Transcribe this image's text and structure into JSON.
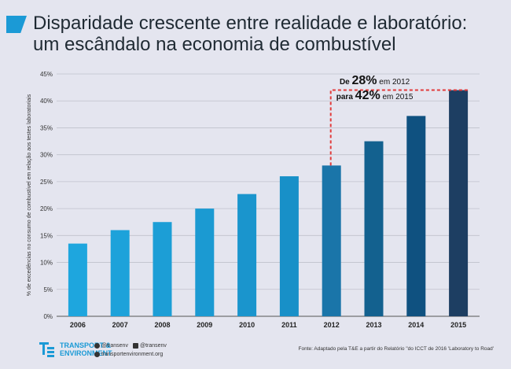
{
  "title_line1": "Disparidade crescente entre realidade e laboratório:",
  "title_line2": "um escândalo na economia de combustível",
  "annotation": {
    "prefix1": "De ",
    "value1": "28%",
    "suffix1": " em 2012",
    "prefix2": "para ",
    "value2": "42%",
    "suffix2": " em 2015"
  },
  "footer": {
    "logo_line1": "TRANSPORT &",
    "logo_line2": "ENVIRONMENT",
    "twitter": "@transenv",
    "facebook": "@transenv",
    "website": "transportenvironment.org",
    "source": "Fonte: Adaptado pela T&E a partir do Relatório \"do ICCT de 2016 'Laboratory to Road'"
  },
  "colors": {
    "background": "#e4e5ef",
    "title_accent": "#1b9ad6",
    "highlight_line": "#e23b3b"
  },
  "chart_data": {
    "type": "bar",
    "title": "Disparidade crescente entre realidade e laboratório: um escândalo na economia de combustível",
    "ylabel": "% de excedências no consumo de combustível em relação aos testes laboratoriais",
    "xlabel": "",
    "categories": [
      "2006",
      "2007",
      "2008",
      "2009",
      "2010",
      "2011",
      "2012",
      "2013",
      "2014",
      "2015"
    ],
    "values": [
      13.5,
      16,
      17.5,
      20,
      22.7,
      26,
      28,
      32.5,
      37.2,
      42
    ],
    "bar_colors": [
      "#1ea6de",
      "#1da2da",
      "#1c9ed6",
      "#1b9ad2",
      "#1a95cd",
      "#1890c8",
      "#1a75a9",
      "#13618f",
      "#0f5180",
      "#1d3e62"
    ],
    "yticks": [
      "0%",
      "5%",
      "10%",
      "15%",
      "20%",
      "25%",
      "30%",
      "35%",
      "40%",
      "45%"
    ],
    "ylim": [
      0,
      45
    ],
    "grid": true
  }
}
